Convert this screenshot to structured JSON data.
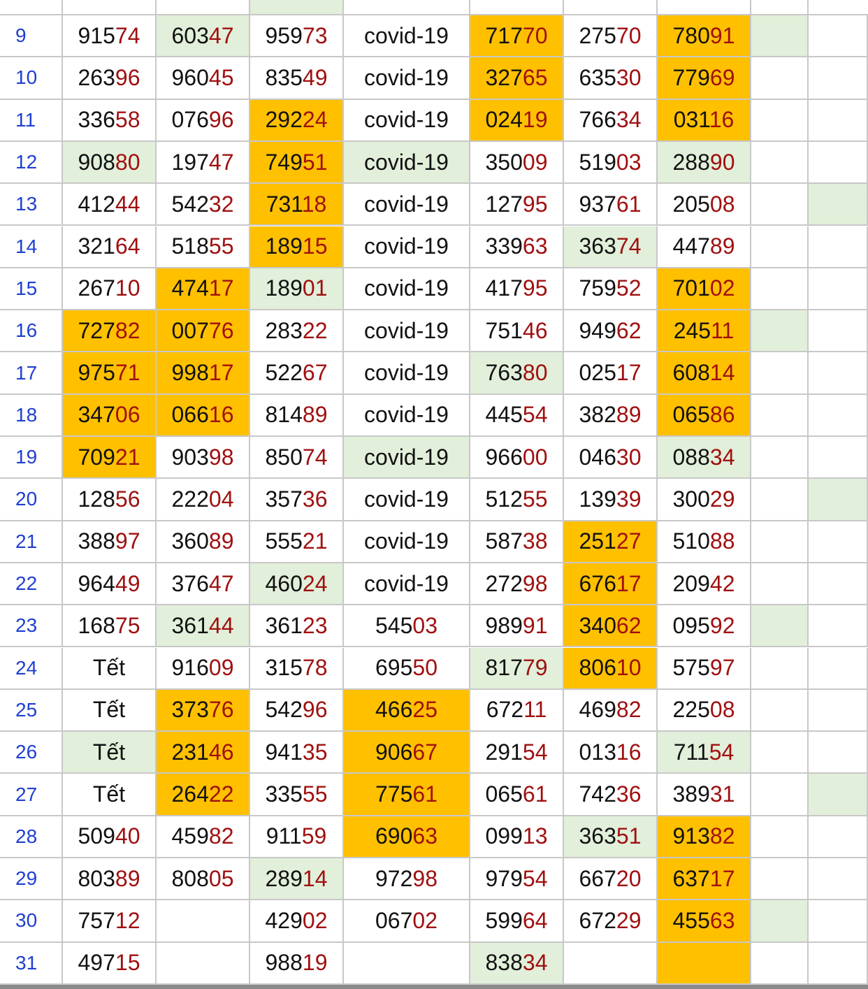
{
  "table": {
    "rows": [
      {
        "day": "9",
        "cells": [
          "91574",
          "60347",
          "95973",
          "covid-19",
          "71770",
          "27570",
          "78091"
        ],
        "fills": [
          null,
          "#E2EFDA",
          null,
          null,
          "#FFC000",
          null,
          "#FFC000",
          "#E2EFDA",
          null
        ]
      },
      {
        "day": "10",
        "cells": [
          "26396",
          "96045",
          "83549",
          "covid-19",
          "32765",
          "63530",
          "77969"
        ],
        "fills": [
          null,
          null,
          null,
          null,
          "#FFC000",
          null,
          "#FFC000",
          null,
          null
        ]
      },
      {
        "day": "11",
        "cells": [
          "33658",
          "07696",
          "29224",
          "covid-19",
          "02419",
          "76634",
          "03116"
        ],
        "fills": [
          null,
          null,
          "#FFC000",
          null,
          "#FFC000",
          null,
          "#FFC000",
          null,
          null
        ]
      },
      {
        "day": "12",
        "cells": [
          "90880",
          "19747",
          "74951",
          "covid-19",
          "35009",
          "51903",
          "28890"
        ],
        "fills": [
          "#E2EFDA",
          null,
          "#FFC000",
          "#E2EFDA",
          null,
          null,
          "#E2EFDA",
          null,
          null
        ]
      },
      {
        "day": "13",
        "cells": [
          "41244",
          "54232",
          "73118",
          "covid-19",
          "12795",
          "93761",
          "20508"
        ],
        "fills": [
          null,
          null,
          "#FFC000",
          null,
          null,
          null,
          null,
          null,
          "#E2EFDA"
        ]
      },
      {
        "day": "14",
        "cells": [
          "32164",
          "51855",
          "18915",
          "covid-19",
          "33963",
          "36374",
          "44789"
        ],
        "fills": [
          null,
          null,
          "#FFC000",
          null,
          null,
          "#E2EFDA",
          null,
          null,
          null
        ]
      },
      {
        "day": "15",
        "cells": [
          "26710",
          "47417",
          "18901",
          "covid-19",
          "41795",
          "75952",
          "70102"
        ],
        "fills": [
          null,
          "#FFC000",
          "#E2EFDA",
          null,
          null,
          null,
          "#FFC000",
          null,
          null
        ]
      },
      {
        "day": "16",
        "cells": [
          "72782",
          "00776",
          "28322",
          "covid-19",
          "75146",
          "94962",
          "24511"
        ],
        "fills": [
          "#FFC000",
          "#FFC000",
          null,
          null,
          null,
          null,
          "#FFC000",
          "#E2EFDA",
          null
        ]
      },
      {
        "day": "17",
        "cells": [
          "97571",
          "99817",
          "52267",
          "covid-19",
          "76380",
          "02517",
          "60814"
        ],
        "fills": [
          "#FFC000",
          "#FFC000",
          null,
          null,
          "#E2EFDA",
          null,
          "#FFC000",
          null,
          null
        ]
      },
      {
        "day": "18",
        "cells": [
          "34706",
          "06616",
          "81489",
          "covid-19",
          "44554",
          "38289",
          "06586"
        ],
        "fills": [
          "#FFC000",
          "#FFC000",
          null,
          null,
          null,
          null,
          "#FFC000",
          null,
          null
        ]
      },
      {
        "day": "19",
        "cells": [
          "70921",
          "90398",
          "85074",
          "covid-19",
          "96600",
          "04630",
          "08834"
        ],
        "fills": [
          "#FFC000",
          null,
          null,
          "#E2EFDA",
          null,
          null,
          "#E2EFDA",
          null,
          null
        ]
      },
      {
        "day": "20",
        "cells": [
          "12856",
          "22204",
          "35736",
          "covid-19",
          "51255",
          "13939",
          "30029"
        ],
        "fills": [
          null,
          null,
          null,
          null,
          null,
          null,
          null,
          null,
          "#E2EFDA"
        ]
      },
      {
        "day": "21",
        "cells": [
          "38897",
          "36089",
          "55521",
          "covid-19",
          "58738",
          "25127",
          "51088"
        ],
        "fills": [
          null,
          null,
          null,
          null,
          null,
          "#FFC000",
          null,
          null,
          null
        ]
      },
      {
        "day": "22",
        "cells": [
          "96449",
          "37647",
          "46024",
          "covid-19",
          "27298",
          "67617",
          "20942"
        ],
        "fills": [
          null,
          null,
          "#E2EFDA",
          null,
          null,
          "#FFC000",
          null,
          null,
          null
        ]
      },
      {
        "day": "23",
        "cells": [
          "16875",
          "36144",
          "36123",
          "54503",
          "98991",
          "34062",
          "09592"
        ],
        "fills": [
          null,
          "#E2EFDA",
          null,
          null,
          null,
          "#FFC000",
          null,
          "#E2EFDA",
          null
        ]
      },
      {
        "day": "24",
        "cells": [
          "Tết",
          "91609",
          "31578",
          "69550",
          "81779",
          "80610",
          "57597"
        ],
        "fills": [
          null,
          null,
          null,
          null,
          "#E2EFDA",
          "#FFC000",
          null,
          null,
          null
        ]
      },
      {
        "day": "25",
        "cells": [
          "Tết",
          "37376",
          "54296",
          "46625",
          "67211",
          "46982",
          "22508"
        ],
        "fills": [
          null,
          "#FFC000",
          null,
          "#FFC000",
          null,
          null,
          null,
          null,
          null
        ]
      },
      {
        "day": "26",
        "cells": [
          "Tết",
          "23146",
          "94135",
          "90667",
          "29154",
          "01316",
          "71154"
        ],
        "fills": [
          "#E2EFDA",
          "#FFC000",
          null,
          "#FFC000",
          null,
          null,
          "#E2EFDA",
          null,
          null
        ]
      },
      {
        "day": "27",
        "cells": [
          "Tết",
          "26422",
          "33555",
          "77561",
          "06561",
          "74236",
          "38931"
        ],
        "fills": [
          null,
          "#FFC000",
          null,
          "#FFC000",
          null,
          null,
          null,
          null,
          "#E2EFDA"
        ]
      },
      {
        "day": "28",
        "cells": [
          "50940",
          "45982",
          "91159",
          "69063",
          "09913",
          "36351",
          "91382"
        ],
        "fills": [
          null,
          null,
          null,
          "#FFC000",
          null,
          "#E2EFDA",
          "#FFC000",
          null,
          null
        ]
      },
      {
        "day": "29",
        "cells": [
          "80389",
          "80805",
          "28914",
          "97298",
          "97954",
          "66720",
          "63717"
        ],
        "fills": [
          null,
          null,
          "#E2EFDA",
          null,
          null,
          null,
          "#FFC000",
          null,
          null
        ]
      },
      {
        "day": "30",
        "cells": [
          "75712",
          null,
          "42902",
          "06702",
          "59964",
          "67229",
          "45563"
        ],
        "fills": [
          null,
          null,
          null,
          null,
          null,
          null,
          "#FFC000",
          "#E2EFDA",
          null
        ]
      },
      {
        "day": "31",
        "cells": [
          "49715",
          null,
          "98819",
          null,
          "83834",
          null,
          null
        ],
        "fills": [
          null,
          null,
          null,
          null,
          "#E2EFDA",
          null,
          "#FFC000",
          null,
          null
        ]
      }
    ]
  }
}
